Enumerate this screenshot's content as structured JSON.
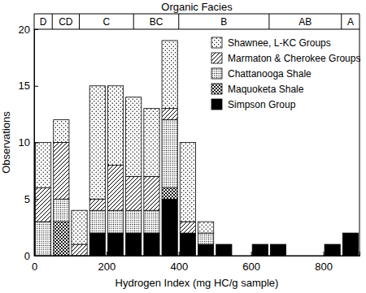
{
  "chart_data": {
    "type": "histogram",
    "title": "Organic Facies",
    "x_label": "Hydrogen Index (mg HC/g sample)",
    "y_label": "Observations",
    "bins": [
      0,
      50,
      100,
      150,
      200,
      250,
      300,
      350,
      400,
      450,
      500,
      550,
      600,
      650,
      700,
      750,
      800,
      850,
      900
    ],
    "series": [
      {
        "name": "Shawnee, L-KC Groups",
        "color": "#000000",
        "values": [
          4,
          2,
          3,
          10,
          7,
          7,
          6,
          6,
          7,
          1,
          0,
          0,
          0,
          0,
          0,
          0,
          0,
          0
        ]
      },
      {
        "name": "Marmaton & Cherokee Groups",
        "color": "#000000",
        "values": [
          3,
          5,
          1,
          1,
          4,
          3,
          3,
          1,
          1,
          0,
          0,
          0,
          0,
          0,
          0,
          0,
          0,
          0
        ]
      },
      {
        "name": "Chattanooga Shale",
        "color": "#000000",
        "values": [
          3,
          2,
          0,
          2,
          2,
          2,
          2,
          6,
          0,
          1,
          0,
          0,
          0,
          0,
          0,
          0,
          0,
          0
        ]
      },
      {
        "name": "Maquoketa Shale",
        "color": "#000000",
        "values": [
          0,
          3,
          0,
          0,
          0,
          0,
          0,
          1,
          0,
          0,
          0,
          0,
          0,
          0,
          0,
          0,
          0,
          0
        ]
      },
      {
        "name": "Simpson Group",
        "color": "#000000",
        "values": [
          0,
          0,
          0,
          2,
          2,
          2,
          2,
          5,
          2,
          1,
          1,
          0,
          1,
          1,
          0,
          0,
          1,
          2
        ]
      }
    ],
    "stacked": true,
    "xlim": [
      0,
      900
    ],
    "xticks": [
      0,
      200,
      400,
      600,
      800
    ],
    "ylim": [
      0,
      20
    ],
    "yticks": [
      0,
      5,
      10,
      15,
      20
    ],
    "grid": false,
    "legend": "upper right",
    "facies": {
      "labels": [
        "D",
        "CD",
        "C",
        "BC",
        "B",
        "AB",
        "A"
      ],
      "boundaries": [
        0,
        50,
        125,
        275,
        400,
        650,
        850,
        900
      ]
    }
  }
}
